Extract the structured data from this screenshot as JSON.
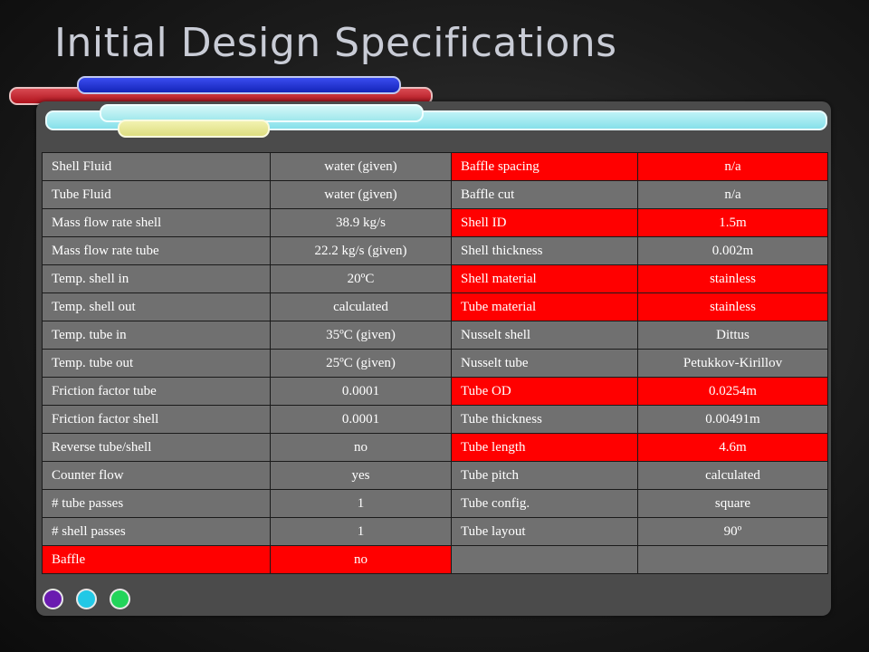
{
  "slide": {
    "title": "Initial Design Specifications"
  },
  "colors": {
    "highlight": "#ff0000",
    "cell": "#707070",
    "panel": "#4b4b4b",
    "pill_red": "#c41f28",
    "pill_blue": "#2233d8",
    "pill_cyan": "#a6ebf1",
    "pill_yellow": "#eaea9a",
    "dot_purple": "#6a1bb0",
    "dot_cyan": "#22c8e6",
    "dot_green": "#22d45a"
  },
  "table": {
    "rows": [
      {
        "left_label": "Shell Fluid",
        "left_value": "water (given)",
        "right_label": "Baffle spacing",
        "right_value": "n/a",
        "left_red": false,
        "right_red": true
      },
      {
        "left_label": "Tube Fluid",
        "left_value": "water (given)",
        "right_label": "Baffle cut",
        "right_value": "n/a",
        "left_red": false,
        "right_red": false
      },
      {
        "left_label": "Mass flow rate shell",
        "left_value": "38.9 kg/s",
        "right_label": "Shell ID",
        "right_value": "1.5m",
        "left_red": false,
        "right_red": true
      },
      {
        "left_label": "Mass flow rate tube",
        "left_value": "22.2 kg/s (given)",
        "right_label": "Shell thickness",
        "right_value": "0.002m",
        "left_red": false,
        "right_red": false
      },
      {
        "left_label": "Temp. shell in",
        "left_value": "20ºC",
        "right_label": "Shell material",
        "right_value": "stainless",
        "left_red": false,
        "right_red": true
      },
      {
        "left_label": "Temp. shell out",
        "left_value": "calculated",
        "right_label": "Tube material",
        "right_value": "stainless",
        "left_red": false,
        "right_red": true
      },
      {
        "left_label": "Temp. tube in",
        "left_value": "35ºC (given)",
        "right_label": "Nusselt shell",
        "right_value": "Dittus",
        "left_red": false,
        "right_red": false
      },
      {
        "left_label": "Temp. tube out",
        "left_value": "25ºC (given)",
        "right_label": "Nusselt tube",
        "right_value": "Petukkov-Kirillov",
        "left_red": false,
        "right_red": false
      },
      {
        "left_label": "Friction factor tube",
        "left_value": "0.0001",
        "right_label": "Tube OD",
        "right_value": "0.0254m",
        "left_red": false,
        "right_red": true
      },
      {
        "left_label": "Friction factor shell",
        "left_value": "0.0001",
        "right_label": "Tube thickness",
        "right_value": "0.00491m",
        "left_red": false,
        "right_red": false
      },
      {
        "left_label": "Reverse tube/shell",
        "left_value": "no",
        "right_label": "Tube length",
        "right_value": "4.6m",
        "left_red": false,
        "right_red": true
      },
      {
        "left_label": "Counter flow",
        "left_value": "yes",
        "right_label": "Tube pitch",
        "right_value": "calculated",
        "left_red": false,
        "right_red": false
      },
      {
        "left_label": "# tube passes",
        "left_value": "1",
        "right_label": "Tube config.",
        "right_value": "square",
        "left_red": false,
        "right_red": false
      },
      {
        "left_label": "# shell passes",
        "left_value": "1",
        "right_label": "Tube layout",
        "right_value": "90º",
        "left_red": false,
        "right_red": false
      },
      {
        "left_label": "Baffle",
        "left_value": "no",
        "right_label": "",
        "right_value": "",
        "left_red": true,
        "right_red": false
      }
    ]
  }
}
